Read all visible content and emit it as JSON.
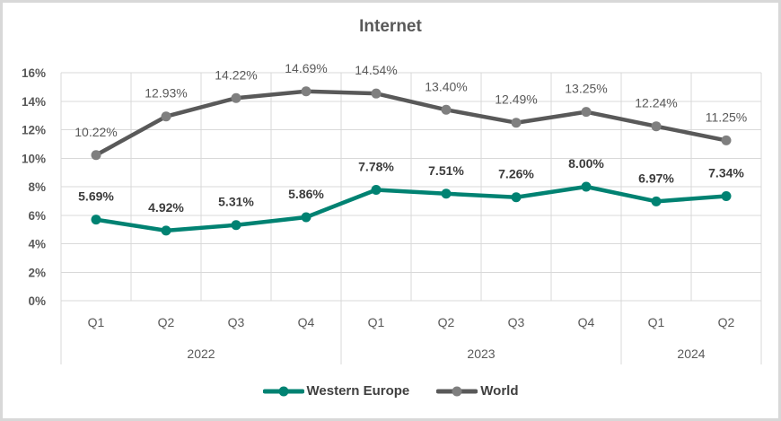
{
  "colors": {
    "grid": "#D9D9D9",
    "axis_text": "#595959",
    "title_text": "#595959",
    "legend_text": "#404040",
    "frame_border": "#D8D8D8",
    "background": "#FFFFFF",
    "western_europe": "#008272",
    "world_line": "#595959",
    "world_marker": "#7F7F7F"
  },
  "chart_data": {
    "type": "line",
    "title": "Internet",
    "categories": [
      "Q1",
      "Q2",
      "Q3",
      "Q4",
      "Q1",
      "Q2",
      "Q3",
      "Q4",
      "Q1",
      "Q2"
    ],
    "year_groups": [
      {
        "label": "2022",
        "span": 4
      },
      {
        "label": "2023",
        "span": 4
      },
      {
        "label": "2024",
        "span": 2
      }
    ],
    "series": [
      {
        "name": "Western Europe",
        "color": "#008272",
        "marker_color": "#008272",
        "label_color": "#3B3B3B",
        "label_bold": true,
        "values": [
          5.69,
          4.92,
          5.31,
          5.86,
          7.78,
          7.51,
          7.26,
          8.0,
          6.97,
          7.34
        ]
      },
      {
        "name": "World",
        "color": "#595959",
        "marker_color": "#7F7F7F",
        "label_color": "#595959",
        "label_bold": false,
        "values": [
          10.22,
          12.93,
          14.22,
          14.69,
          14.54,
          13.4,
          12.49,
          13.25,
          12.24,
          11.25
        ]
      }
    ],
    "ylim": [
      0,
      16
    ],
    "ytick_step": 2,
    "ytick_suffix": "%",
    "data_label_decimals": 2,
    "data_label_suffix": "%",
    "grid": true,
    "legend_position": "bottom"
  }
}
